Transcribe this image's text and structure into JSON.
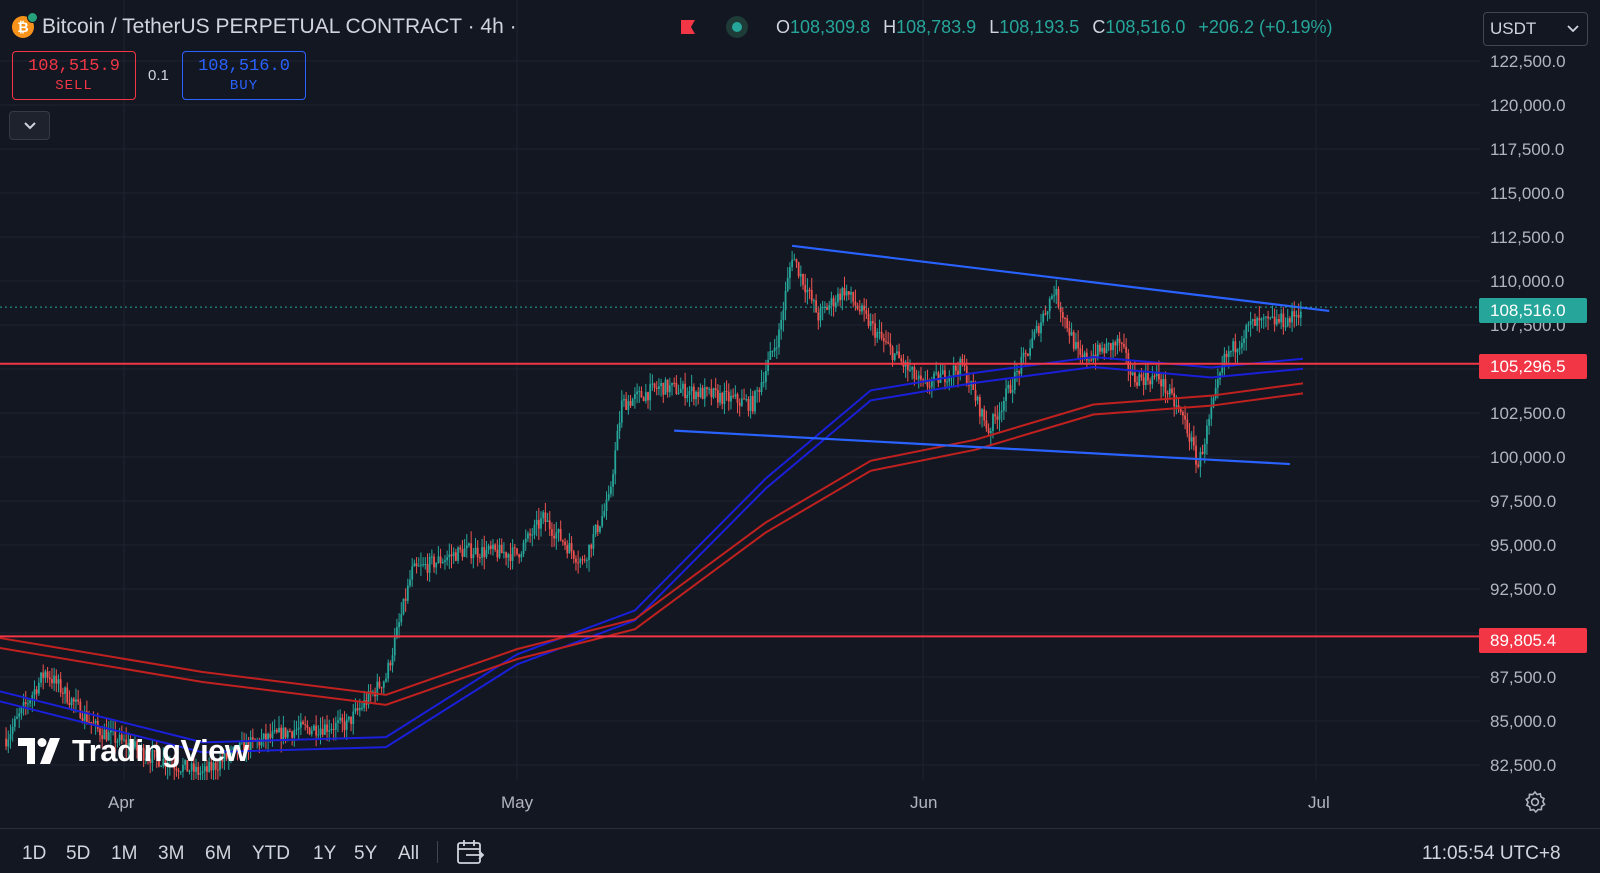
{
  "header": {
    "symbol_glyph": "₿",
    "title": "Bitcoin / TetherUS PERPETUAL CONTRACT · 4h ·",
    "ohlc": {
      "o_label": "O",
      "o": "108,309.8",
      "h_label": "H",
      "h": "108,783.9",
      "l_label": "L",
      "l": "108,193.5",
      "c_label": "C",
      "c": "108,516.0",
      "change": "+206.2 (+0.19%)"
    },
    "flag_icon": "flag-icon",
    "status_icon": "market-open-icon"
  },
  "trade": {
    "sell_price": "108,515.9",
    "sell_label": "SELL",
    "quantity": "0.1",
    "buy_price": "108,516.0",
    "buy_label": "BUY"
  },
  "currency": {
    "value": "USDT"
  },
  "price_axis": {
    "ticks": [
      "122,500.0",
      "120,000.0",
      "117,500.0",
      "115,000.0",
      "112,500.0",
      "110,000.0",
      "107,500.0",
      "102,500.0",
      "100,000.0",
      "97,500.0",
      "95,000.0",
      "92,500.0",
      "87,500.0",
      "85,000.0",
      "82,500.0"
    ],
    "current_price_tag": "108,516.0",
    "level_tag_1": "105,296.5",
    "level_tag_2": "89,805.4"
  },
  "time_axis": {
    "labels": [
      "Apr",
      "May",
      "Jun",
      "Jul"
    ]
  },
  "logo": {
    "text": "TradingView"
  },
  "bottom_bar": {
    "ranges": [
      "1D",
      "5D",
      "1M",
      "3M",
      "6M",
      "YTD",
      "1Y",
      "5Y",
      "All"
    ],
    "clock": "11:05:54 UTC+8"
  },
  "colors": {
    "background": "#131722",
    "up": "#26a69a",
    "down": "#ef5350",
    "trendline": "#2962ff",
    "level": "#f23645",
    "ma_blue": "#1a1fd9",
    "ma_red": "#c0211f"
  },
  "chart_data": {
    "type": "candlestick",
    "symbol": "Bitcoin / TetherUS PERPETUAL CONTRACT",
    "interval": "4h",
    "ylim": [
      81500,
      124500
    ],
    "x_labels": [
      "Apr",
      "May",
      "Jun",
      "Jul"
    ],
    "close_path": [
      {
        "date": "2025-03-23",
        "price": 84000
      },
      {
        "date": "2025-03-26",
        "price": 87800
      },
      {
        "date": "2025-03-30",
        "price": 84500
      },
      {
        "date": "2025-04-03",
        "price": 83000
      },
      {
        "date": "2025-04-07",
        "price": 82000
      },
      {
        "date": "2025-04-10",
        "price": 83500
      },
      {
        "date": "2025-04-14",
        "price": 84500
      },
      {
        "date": "2025-04-18",
        "price": 84800
      },
      {
        "date": "2025-04-21",
        "price": 87500
      },
      {
        "date": "2025-04-23",
        "price": 93500
      },
      {
        "date": "2025-04-27",
        "price": 94700
      },
      {
        "date": "2025-05-01",
        "price": 94500
      },
      {
        "date": "2025-05-03",
        "price": 96500
      },
      {
        "date": "2025-05-06",
        "price": 94000
      },
      {
        "date": "2025-05-08",
        "price": 97500
      },
      {
        "date": "2025-05-09",
        "price": 103000
      },
      {
        "date": "2025-05-12",
        "price": 104000
      },
      {
        "date": "2025-05-16",
        "price": 103500
      },
      {
        "date": "2025-05-19",
        "price": 103000
      },
      {
        "date": "2025-05-21",
        "price": 107000
      },
      {
        "date": "2025-05-22",
        "price": 111500
      },
      {
        "date": "2025-05-24",
        "price": 108000
      },
      {
        "date": "2025-05-26",
        "price": 109500
      },
      {
        "date": "2025-05-29",
        "price": 106500
      },
      {
        "date": "2025-06-01",
        "price": 104000
      },
      {
        "date": "2025-06-04",
        "price": 105200
      },
      {
        "date": "2025-06-06",
        "price": 101500
      },
      {
        "date": "2025-06-09",
        "price": 106000
      },
      {
        "date": "2025-06-11",
        "price": 109500
      },
      {
        "date": "2025-06-13",
        "price": 105500
      },
      {
        "date": "2025-06-16",
        "price": 106500
      },
      {
        "date": "2025-06-17",
        "price": 104500
      },
      {
        "date": "2025-06-19",
        "price": 104500
      },
      {
        "date": "2025-06-21",
        "price": 102000
      },
      {
        "date": "2025-06-22",
        "price": 99500
      },
      {
        "date": "2025-06-24",
        "price": 105500
      },
      {
        "date": "2025-06-26",
        "price": 107500
      },
      {
        "date": "2025-06-29",
        "price": 107800
      },
      {
        "date": "2025-06-30",
        "price": 108516
      }
    ],
    "horizontal_levels": [
      105296.5,
      89805.4
    ],
    "trendlines": [
      {
        "name": "upper",
        "from": {
          "date": "2025-05-22",
          "price": 112000
        },
        "to": {
          "date": "2025-07-02",
          "price": 108300
        }
      },
      {
        "name": "lower",
        "from": {
          "date": "2025-05-13",
          "price": 101500
        },
        "to": {
          "date": "2025-06-29",
          "price": 99600
        }
      }
    ],
    "moving_averages": [
      {
        "color": "blue",
        "points": [
          {
            "date": "2025-03-22",
            "price": 86500
          },
          {
            "date": "2025-04-07",
            "price": 83500
          },
          {
            "date": "2025-04-21",
            "price": 83800
          },
          {
            "date": "2025-05-01",
            "price": 88500
          },
          {
            "date": "2025-05-10",
            "price": 91000
          },
          {
            "date": "2025-05-20",
            "price": 98500
          },
          {
            "date": "2025-05-28",
            "price": 103500
          },
          {
            "date": "2025-06-05",
            "price": 104500
          },
          {
            "date": "2025-06-14",
            "price": 105400
          },
          {
            "date": "2025-06-23",
            "price": 104800
          },
          {
            "date": "2025-06-30",
            "price": 105300
          }
        ]
      },
      {
        "color": "red",
        "points": [
          {
            "date": "2025-03-22",
            "price": 89500
          },
          {
            "date": "2025-04-07",
            "price": 87500
          },
          {
            "date": "2025-04-21",
            "price": 86200
          },
          {
            "date": "2025-05-01",
            "price": 88800
          },
          {
            "date": "2025-05-10",
            "price": 90500
          },
          {
            "date": "2025-05-20",
            "price": 96000
          },
          {
            "date": "2025-05-28",
            "price": 99500
          },
          {
            "date": "2025-06-05",
            "price": 100700
          },
          {
            "date": "2025-06-14",
            "price": 102700
          },
          {
            "date": "2025-06-23",
            "price": 103200
          },
          {
            "date": "2025-06-30",
            "price": 103900
          }
        ]
      }
    ]
  }
}
